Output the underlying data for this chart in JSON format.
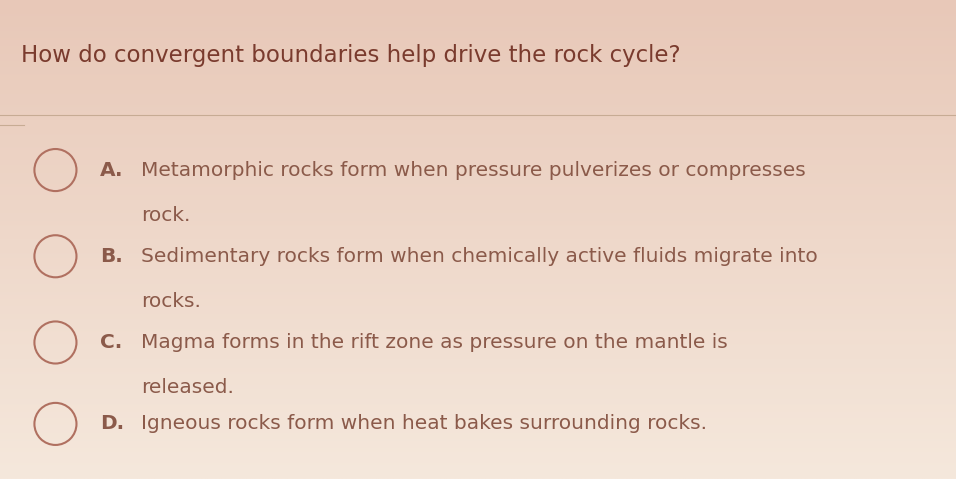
{
  "background_top": "#e8c8b8",
  "background_bottom": "#f0e0d0",
  "title": "How do convergent boundaries help drive the rock cycle?",
  "title_color": "#7a3b2e",
  "title_fontsize": 16.5,
  "separator_color": "#c4a890",
  "options": [
    {
      "letter": "A.",
      "line1": "Metamorphic rocks form when pressure pulverizes or compresses",
      "line2": "rock."
    },
    {
      "letter": "B.",
      "line1": "Sedimentary rocks form when chemically active fluids migrate into",
      "line2": "rocks."
    },
    {
      "letter": "C.",
      "line1": "Magma forms in the rift zone as pressure on the mantle is",
      "line2": "released."
    },
    {
      "letter": "D.",
      "line1": "Igneous rocks form when heat bakes surrounding rocks.",
      "line2": ""
    }
  ],
  "letter_fontsize": 14.5,
  "text_fontsize": 14.5,
  "text_color": "#8b5a4a",
  "circle_color": "#b07060",
  "circle_lw": 1.5
}
